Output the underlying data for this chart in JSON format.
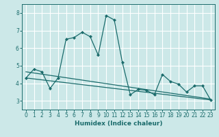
{
  "xlabel": "Humidex (Indice chaleur)",
  "xlim": [
    -0.5,
    23.5
  ],
  "ylim": [
    2.5,
    8.5
  ],
  "yticks": [
    3,
    4,
    5,
    6,
    7,
    8
  ],
  "xticks": [
    0,
    1,
    2,
    3,
    4,
    5,
    6,
    7,
    8,
    9,
    10,
    11,
    12,
    13,
    14,
    15,
    16,
    17,
    18,
    19,
    20,
    21,
    22,
    23
  ],
  "bg_color": "#cce8e8",
  "line_color": "#1a6b6b",
  "grid_color": "#ffffff",
  "main_x": [
    0,
    1,
    2,
    3,
    4,
    5,
    6,
    7,
    8,
    9,
    10,
    11,
    12,
    13,
    14,
    15,
    16,
    17,
    18,
    19,
    20,
    21,
    22,
    23
  ],
  "main_y": [
    4.3,
    4.8,
    4.65,
    3.7,
    4.3,
    6.5,
    6.6,
    6.9,
    6.65,
    5.6,
    7.85,
    7.6,
    5.2,
    3.35,
    3.65,
    3.6,
    3.35,
    4.5,
    4.1,
    3.95,
    3.5,
    3.85,
    3.85,
    3.05
  ],
  "line2_x": [
    0,
    23
  ],
  "line2_y": [
    4.65,
    3.1
  ],
  "line3_x": [
    0,
    23
  ],
  "line3_y": [
    4.3,
    3.05
  ],
  "tick_fontsize": 5.5,
  "xlabel_fontsize": 6.5
}
